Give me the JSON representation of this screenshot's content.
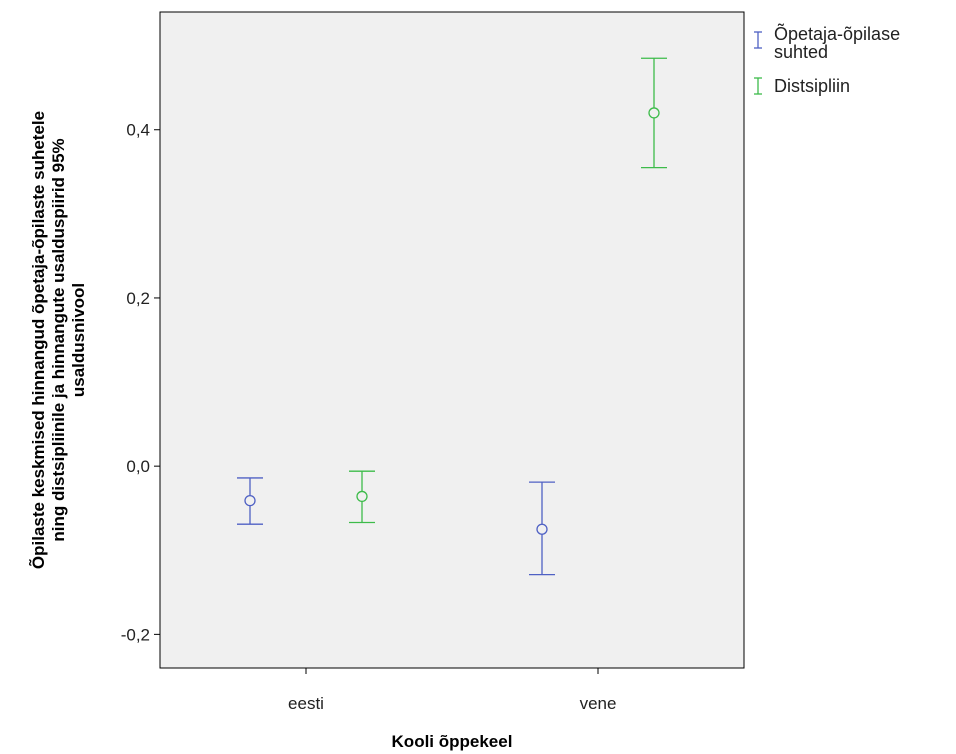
{
  "chart_data": {
    "type": "errorbar",
    "xlabel": "Kooli õppekeel",
    "ylabel_lines": [
      "Õpilaste keskmised hinnangud õpetaja-õpilaste suhetele",
      "ning distsipliinile ja hinnangute usalduspiirid 95%",
      "usaldusnivool"
    ],
    "categories": [
      "eesti",
      "vene"
    ],
    "ylim": [
      -0.24,
      0.54
    ],
    "yticks": [
      -0.2,
      0.0,
      0.2,
      0.4
    ],
    "ytick_labels": [
      "-0,2",
      "0,0",
      "0,2",
      "0,4"
    ],
    "grid": false,
    "legend_position": "right",
    "series": [
      {
        "name": "Õpetaja-õpilase suhted",
        "legend_lines": [
          "Õpetaja-õpilase",
          "suhted"
        ],
        "color": "#4f61c4",
        "mean": [
          -0.041,
          -0.075
        ],
        "lower": [
          -0.069,
          -0.129
        ],
        "upper": [
          -0.014,
          -0.019
        ]
      },
      {
        "name": "Distsipliin",
        "legend_lines": [
          "Distsipliin"
        ],
        "color": "#3dbb4a",
        "mean": [
          -0.036,
          0.42
        ],
        "lower": [
          -0.067,
          0.355
        ],
        "upper": [
          -0.006,
          0.485
        ]
      }
    ]
  },
  "style": {
    "plot_background": "#f0f0f0",
    "plot_border": "#000000"
  }
}
